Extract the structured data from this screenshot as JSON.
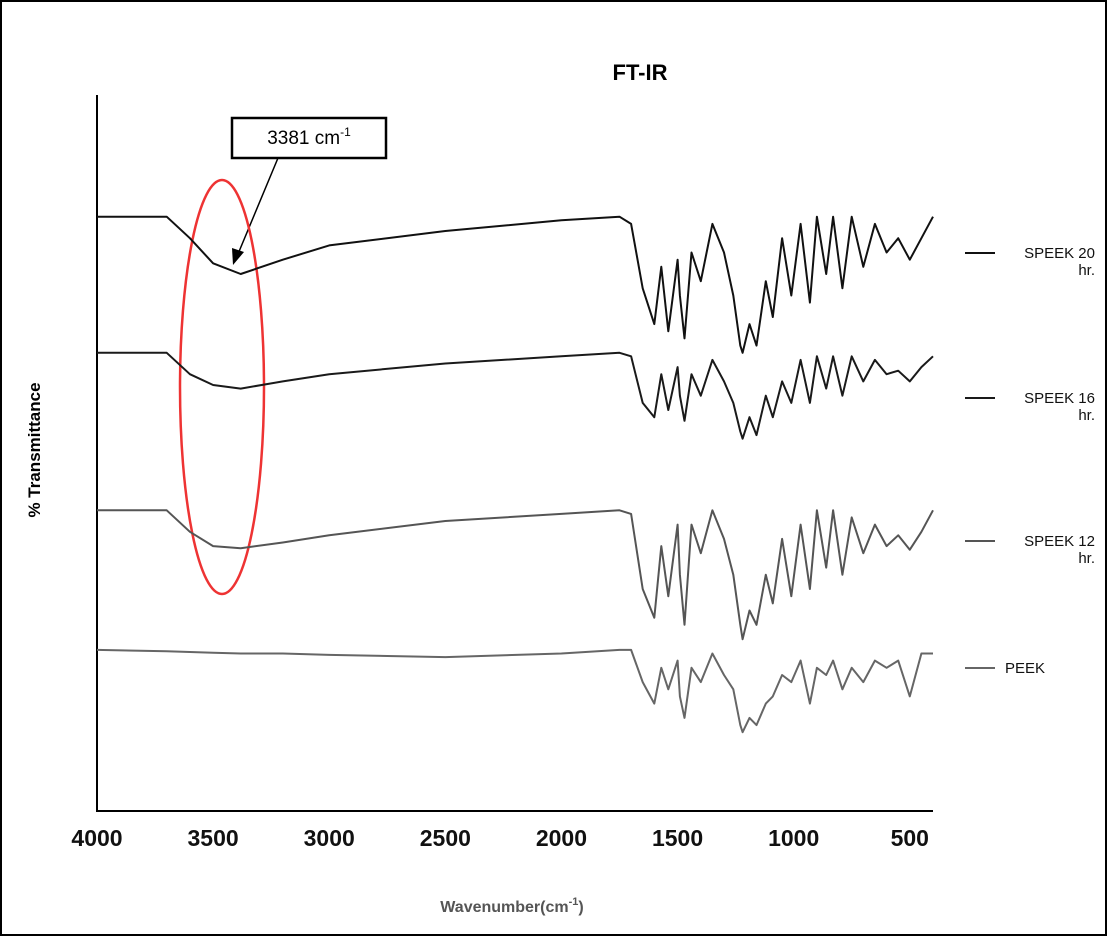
{
  "chart_data": {
    "type": "line",
    "title": "FT-IR",
    "ylabel": "% Transmittance",
    "xlabel_parts": [
      "Wavenumber(cm",
      "-1",
      ")"
    ],
    "annotation_parts": [
      "3381 cm",
      "-1"
    ],
    "x": [
      4000,
      3700,
      3600,
      3500,
      3381,
      3200,
      3000,
      2500,
      2000,
      1750,
      1700,
      1650,
      1600,
      1570,
      1540,
      1500,
      1490,
      1470,
      1440,
      1400,
      1350,
      1300,
      1260,
      1230,
      1220,
      1190,
      1160,
      1120,
      1090,
      1050,
      1010,
      970,
      930,
      900,
      860,
      830,
      790,
      750,
      700,
      650,
      600,
      550,
      500,
      450,
      400
    ],
    "series": [
      {
        "name": "SPEEK 20 hr.",
        "color": "#111111",
        "values": [
          83,
          83,
          80,
          76.5,
          75,
          77,
          79,
          81,
          82.5,
          83,
          82,
          73,
          68,
          76,
          67,
          77,
          72,
          66,
          78,
          74,
          82,
          78,
          72,
          65,
          64,
          68,
          65,
          74,
          69,
          80,
          72,
          82,
          71,
          83,
          75,
          83,
          73,
          83,
          76,
          82,
          78,
          80,
          77,
          80,
          83
        ]
      },
      {
        "name": "SPEEK 16 hr.",
        "color": "#1a1a1a",
        "values": [
          64,
          64,
          61,
          59.5,
          59,
          60,
          61,
          62.5,
          63.5,
          64,
          63.5,
          57,
          55,
          61,
          56,
          62,
          58,
          54.5,
          61,
          58,
          63,
          60,
          57,
          53,
          52,
          55,
          52.5,
          58,
          55,
          60,
          57,
          63,
          57,
          63.5,
          59,
          63.5,
          58,
          63.5,
          60,
          63,
          61,
          61.5,
          60,
          62,
          63.5
        ]
      },
      {
        "name": "SPEEK 12 hr.",
        "color": "#555555",
        "values": [
          42,
          42,
          39,
          37,
          36.7,
          37.5,
          38.5,
          40.5,
          41.5,
          42,
          41.5,
          31,
          27,
          37,
          30,
          40,
          33,
          26,
          40,
          36,
          42,
          38,
          33,
          26,
          24,
          28,
          26,
          33,
          29,
          38,
          30,
          40,
          31,
          42,
          34,
          42,
          33,
          41,
          36,
          40,
          37,
          38.5,
          36.5,
          39,
          42
        ]
      },
      {
        "name": "PEEK",
        "color": "#666666",
        "values": [
          22.5,
          22.3,
          22.2,
          22.1,
          22,
          22,
          21.8,
          21.5,
          22,
          22.5,
          22.5,
          18,
          15,
          20,
          17,
          21,
          16,
          13,
          20,
          18,
          22,
          19,
          17,
          12,
          11,
          13,
          12,
          15,
          16,
          19,
          18,
          21,
          15,
          20,
          19,
          21,
          17,
          20,
          18,
          21,
          20,
          21,
          16,
          22,
          22
        ]
      }
    ],
    "xlim": [
      4000,
      400
    ],
    "ylim": [
      0,
      100
    ],
    "xticks": [
      4000,
      3500,
      3000,
      2500,
      2000,
      1500,
      1000,
      500
    ]
  }
}
